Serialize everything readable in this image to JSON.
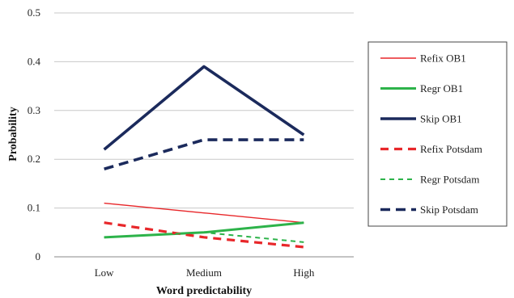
{
  "chart_data": {
    "type": "line",
    "title": "",
    "xlabel": "Word predictability",
    "ylabel": "Probability",
    "categories": [
      "Low",
      "Medium",
      "High"
    ],
    "ylim": [
      0,
      0.5
    ],
    "yticks": [
      "0",
      "0.1",
      "0.2",
      "0.3",
      "0.4",
      "0.5"
    ],
    "grid": true,
    "legend_position": "right",
    "series": [
      {
        "name": "Refix OB1",
        "values": [
          0.11,
          0.09,
          0.07
        ],
        "color": "#e8272a",
        "style": "thin-solid"
      },
      {
        "name": "Regr OB1",
        "values": [
          0.04,
          0.05,
          0.07
        ],
        "color": "#2db34a",
        "style": "solid"
      },
      {
        "name": "Skip OB1",
        "values": [
          0.22,
          0.39,
          0.25
        ],
        "color": "#1b2a5c",
        "style": "thick-solid"
      },
      {
        "name": "Refix Potsdam",
        "values": [
          0.07,
          0.04,
          0.02
        ],
        "color": "#e8272a",
        "style": "dashed"
      },
      {
        "name": "Regr Potsdam",
        "values": [
          0.04,
          0.05,
          0.03
        ],
        "color": "#2db34a",
        "style": "thin-dashed"
      },
      {
        "name": "Skip Potsdam",
        "values": [
          0.18,
          0.24,
          0.24
        ],
        "color": "#1b2a5c",
        "style": "thick-dashed"
      }
    ]
  }
}
